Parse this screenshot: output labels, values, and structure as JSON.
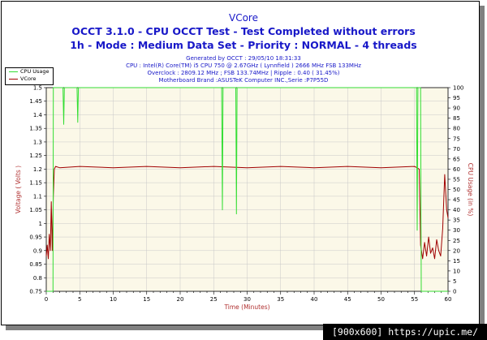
{
  "titles": {
    "line1": "VCore",
    "line2": "OCCT 3.1.0 - CPU OCCT Test - Test Completed without errors",
    "line3": "1h - Mode : Medium Data Set - Priority : NORMAL - 4 threads"
  },
  "info": {
    "generated": "Generated by OCCT : 29/05/10 18:31:33",
    "cpu": "CPU : Intel(R) Core(TM) i5 CPU 750 @ 2.67GHz ( Lynnfield ) 2666 MHz FSB 133MHz",
    "overclock": "Overclock : 2809.12 MHz ; FSB 133.74MHz | Ripple : 0.40 ( 31.45%)",
    "motherboard": "Motherboard Brand :ASUSTeK Computer INC.,Serie :P7P55D"
  },
  "legend": {
    "cpu_usage": "CPU Usage",
    "vcore": "VCore"
  },
  "footer": {
    "text": "[900x600] https://upic.me/"
  },
  "colors": {
    "vcore": "#a00000",
    "cpu": "#33dd33",
    "plot_bg": "#fbf8e8",
    "grid": "#c8c8c8",
    "title": "#1818c8",
    "left_axis_label": "#b03030",
    "right_axis_label": "#b03030",
    "x_axis_label": "#b03030"
  },
  "chart_data": {
    "type": "line",
    "xlabel": "Time (Minutes)",
    "ylabel": "Voltage ( Volts )",
    "y2label": "CPU Usage (in %)",
    "xlim": [
      0,
      60
    ],
    "ylim": [
      0.75,
      1.5
    ],
    "y2lim": [
      0,
      100
    ],
    "x_ticks": [
      0,
      5,
      10,
      15,
      20,
      25,
      30,
      35,
      40,
      45,
      50,
      55,
      60
    ],
    "y_ticks": [
      0.75,
      0.8,
      0.85,
      0.9,
      0.95,
      1,
      1.05,
      1.1,
      1.15,
      1.2,
      1.25,
      1.3,
      1.35,
      1.4,
      1.45,
      1.5
    ],
    "y_tick_labels": [
      "0.75",
      "0.8",
      "0.85",
      "0.9",
      "0.95",
      "1",
      "1.05",
      "1.1",
      "1.15",
      "1.2",
      "1.25",
      "1.3",
      "1.35",
      "1.4",
      "1.45",
      "1.5"
    ],
    "y2_ticks": [
      0,
      5,
      10,
      15,
      20,
      25,
      30,
      35,
      40,
      45,
      50,
      55,
      60,
      65,
      70,
      75,
      80,
      85,
      90,
      95,
      100
    ],
    "grid": true,
    "legend_position": "top-left",
    "series": [
      {
        "name": "VCore",
        "axis": "left",
        "x": [
          0,
          0.15,
          0.3,
          0.45,
          0.6,
          0.75,
          0.9,
          1.05,
          1.2,
          1.4,
          2,
          5,
          10,
          15,
          20,
          25,
          30,
          35,
          40,
          45,
          50,
          55,
          55.7,
          55.9,
          56.2,
          56.5,
          56.8,
          57.1,
          57.4,
          57.7,
          58,
          58.3,
          58.6,
          58.9,
          59.2,
          59.5,
          59.8,
          60
        ],
        "y": [
          0.88,
          0.92,
          0.87,
          0.96,
          0.9,
          1.08,
          0.9,
          1.1,
          1.2,
          1.21,
          1.205,
          1.21,
          1.205,
          1.21,
          1.205,
          1.21,
          1.205,
          1.21,
          1.205,
          1.21,
          1.205,
          1.21,
          1.2,
          0.92,
          0.87,
          0.93,
          0.88,
          0.95,
          0.89,
          0.91,
          0.87,
          0.94,
          0.9,
          0.88,
          0.98,
          1.18,
          1.05,
          1.02
        ]
      },
      {
        "name": "CPU Usage",
        "axis": "right",
        "x": [
          0,
          1,
          1.05,
          2.5,
          2.6,
          2.7,
          4.6,
          4.7,
          4.8,
          26.2,
          26.3,
          26.4,
          28.3,
          28.4,
          28.5,
          55.3,
          55.4,
          55.5,
          55.9,
          56,
          60
        ],
        "y": [
          0,
          0,
          100,
          100,
          82,
          100,
          100,
          83,
          100,
          100,
          40,
          100,
          100,
          38,
          100,
          100,
          30,
          100,
          100,
          0,
          0
        ]
      }
    ]
  }
}
